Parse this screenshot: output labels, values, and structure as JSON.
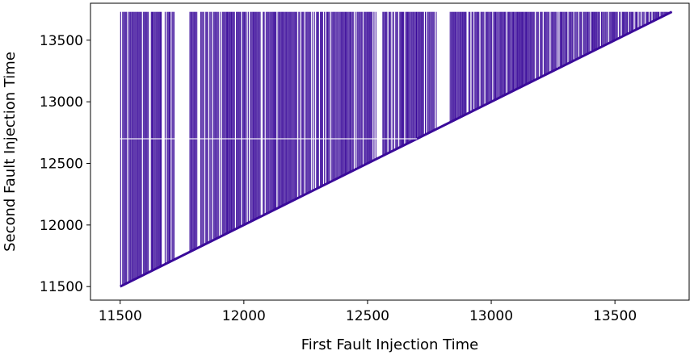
{
  "chart_data": {
    "type": "scatter",
    "title": "",
    "xlabel": "First Fault Injection Time",
    "ylabel": "Second Fault Injection Time",
    "xlim": [
      11380,
      13800
    ],
    "ylim": [
      11390,
      13800
    ],
    "xticks": [
      "11500",
      "12000",
      "12500",
      "13000",
      "13500"
    ],
    "yticks": [
      "11500",
      "12000",
      "12500",
      "13000",
      "13500"
    ],
    "grid": false,
    "legend": null,
    "marker_color": "#3a0a9a",
    "description_of_data": "dense vertical columns of points at each first-fault time; second time ranges from the first time (diagonal y = x) up to ~13730",
    "x_range": [
      11500,
      13730
    ],
    "y_max": 13730,
    "columns": [
      {
        "x_start": 11500,
        "x_end": 11530,
        "y_min": 11500
      },
      {
        "x_start": 11530,
        "x_end": 11600,
        "y_min": 11560
      },
      {
        "x_start": 11600,
        "x_end": 11680,
        "y_min": 11650
      },
      {
        "x_start": 11680,
        "x_end": 11720,
        "y_min": 11700
      },
      {
        "x_start": 11780,
        "x_end": 11900,
        "y_min": 11800
      },
      {
        "x_start": 11900,
        "x_end": 12050,
        "y_min": 11950
      },
      {
        "x_start": 12050,
        "x_end": 12300,
        "y_min": 12100
      },
      {
        "x_start": 12300,
        "x_end": 12500,
        "y_min": 12350
      },
      {
        "x_start": 12500,
        "x_end": 12700,
        "y_min": 12550
      },
      {
        "x_start": 12700,
        "x_end": 12780,
        "y_min": 12720
      },
      {
        "x_start": 12830,
        "x_end": 12980,
        "y_min": 12850
      },
      {
        "x_start": 12980,
        "x_end": 13200,
        "y_min": 13000
      },
      {
        "x_start": 13200,
        "x_end": 13450,
        "y_min": 13220
      },
      {
        "x_start": 13450,
        "x_end": 13730,
        "y_min": 13460
      }
    ],
    "gaps_x": [
      [
        11720,
        11780
      ],
      [
        12780,
        12830
      ],
      [
        12535,
        12555
      ],
      [
        11665,
        11680
      ]
    ],
    "horizontal_gap_y": 12700
  }
}
